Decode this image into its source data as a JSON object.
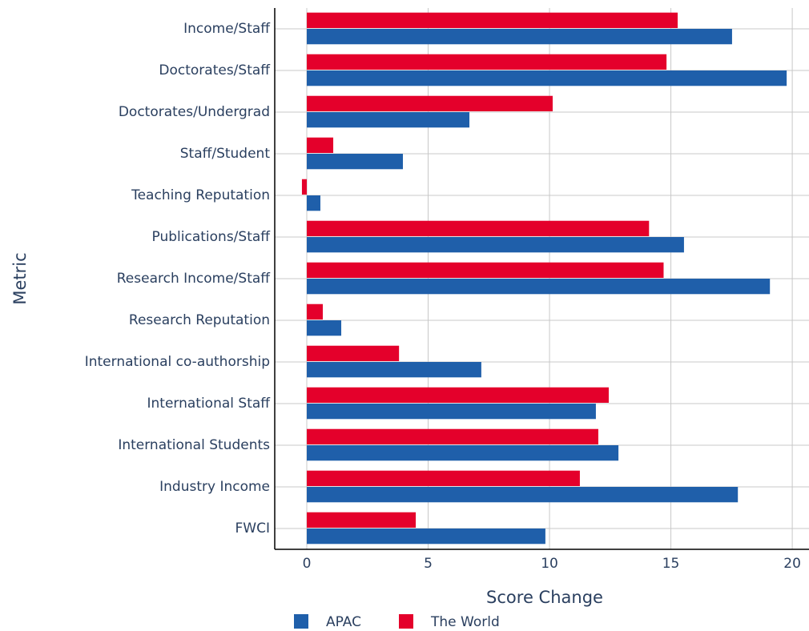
{
  "chart_data": {
    "type": "bar",
    "orientation": "horizontal",
    "xlabel": "Score Change",
    "ylabel": "Metric",
    "categories": [
      "Income/Staff",
      "Doctorates/Staff",
      "Doctorates/Undergrad",
      "Staff/Student",
      "Teaching Reputation",
      "Publications/Staff",
      "Research Income/Staff",
      "Research Reputation",
      "International co-authorship",
      "International Staff",
      "International Students",
      "Industry Income",
      "FWCI"
    ],
    "series": [
      {
        "name": "APAC",
        "color": "#1f5faa",
        "values": [
          17.52,
          19.77,
          6.7,
          3.96,
          0.56,
          15.54,
          19.08,
          1.42,
          7.19,
          11.91,
          12.84,
          17.76,
          9.83
        ]
      },
      {
        "name": "The World",
        "color": "#e4002b",
        "values": [
          15.28,
          14.82,
          10.13,
          1.09,
          -0.2,
          14.1,
          14.7,
          0.66,
          3.8,
          12.44,
          12.01,
          11.25,
          4.49
        ]
      }
    ],
    "xlim": [
      -1.32,
      20.69
    ],
    "xticks": [
      0,
      5,
      10,
      15,
      20
    ],
    "grid": true,
    "legend": "bottom"
  }
}
